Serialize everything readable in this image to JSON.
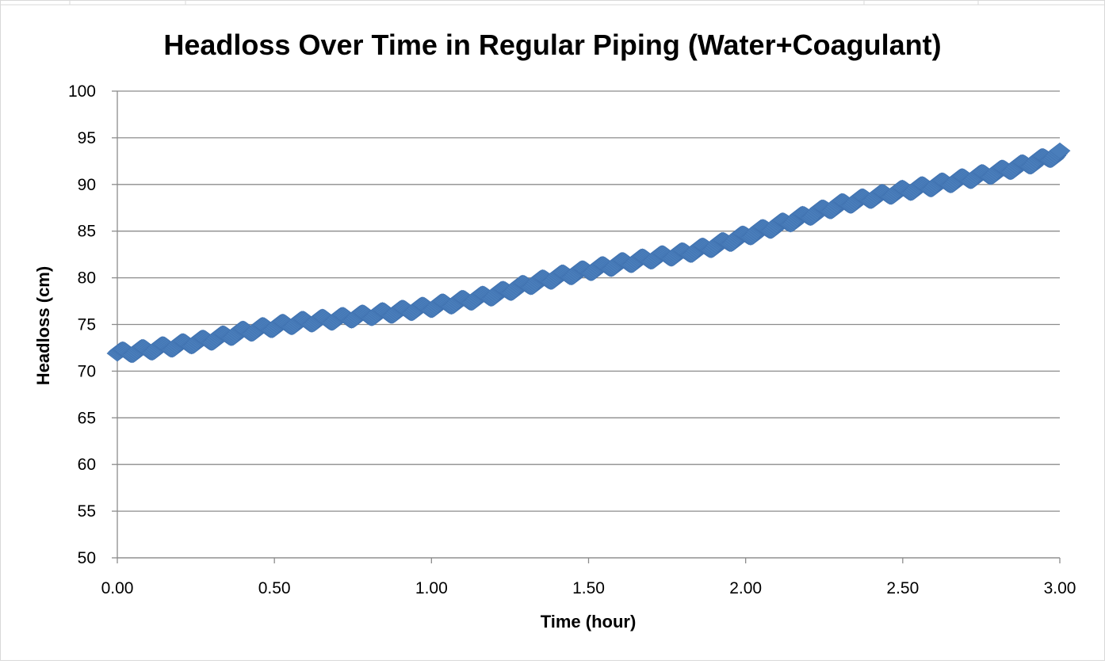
{
  "chart_data": {
    "type": "scatter",
    "title": "Headloss Over Time in Regular Piping (Water+Coagulant)",
    "xlabel": "Time (hour)",
    "ylabel": "Headloss (cm)",
    "xlim": [
      0,
      3
    ],
    "ylim": [
      50,
      100
    ],
    "x_ticks": [
      "0.00",
      "0.50",
      "1.00",
      "1.50",
      "2.00",
      "2.50",
      "3.00"
    ],
    "y_ticks": [
      "50",
      "55",
      "60",
      "65",
      "70",
      "75",
      "80",
      "85",
      "90",
      "95",
      "100"
    ],
    "grid": "horizontal major gridlines",
    "legend": "none",
    "marker": "diamond",
    "series_color": "#4A7EBB",
    "points": [
      {
        "x": 0.0,
        "y": 71.9
      },
      {
        "x": 0.1,
        "y": 72.3
      },
      {
        "x": 0.2,
        "y": 72.8
      },
      {
        "x": 0.3,
        "y": 73.4
      },
      {
        "x": 0.4,
        "y": 74.2
      },
      {
        "x": 0.5,
        "y": 74.8
      },
      {
        "x": 0.6,
        "y": 75.3
      },
      {
        "x": 0.7,
        "y": 75.6
      },
      {
        "x": 0.8,
        "y": 76.0
      },
      {
        "x": 0.9,
        "y": 76.4
      },
      {
        "x": 1.0,
        "y": 76.9
      },
      {
        "x": 1.1,
        "y": 77.5
      },
      {
        "x": 1.2,
        "y": 78.2
      },
      {
        "x": 1.3,
        "y": 79.2
      },
      {
        "x": 1.4,
        "y": 80.1
      },
      {
        "x": 1.5,
        "y": 80.8
      },
      {
        "x": 1.6,
        "y": 81.5
      },
      {
        "x": 1.7,
        "y": 82.1
      },
      {
        "x": 1.8,
        "y": 82.6
      },
      {
        "x": 1.9,
        "y": 83.4
      },
      {
        "x": 2.0,
        "y": 84.5
      },
      {
        "x": 2.1,
        "y": 85.6
      },
      {
        "x": 2.2,
        "y": 86.7
      },
      {
        "x": 2.3,
        "y": 87.8
      },
      {
        "x": 2.4,
        "y": 88.6
      },
      {
        "x": 2.5,
        "y": 89.3
      },
      {
        "x": 2.6,
        "y": 89.9
      },
      {
        "x": 2.7,
        "y": 90.6
      },
      {
        "x": 2.8,
        "y": 91.3
      },
      {
        "x": 2.9,
        "y": 92.2
      },
      {
        "x": 3.0,
        "y": 93.3
      }
    ]
  }
}
